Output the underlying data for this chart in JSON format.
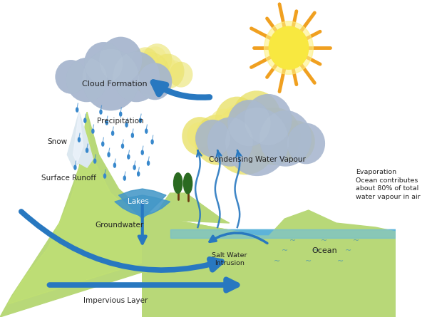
{
  "bg_color": "#ffffff",
  "mountain_color_top": "#b8d878",
  "mountain_color_bottom": "#90c840",
  "snow_color": "#dce8f0",
  "ocean_color": "#4aa8d0",
  "ocean_top": "#6abce0",
  "cloud_gray": "#9aaac8",
  "cloud_gray2": "#b8c8d8",
  "cloud_yellow": "#e8e060",
  "cloud_yellow2": "#f0e878",
  "arrow_color": "#2878c0",
  "rain_color": "#3888cc",
  "sun_yellow": "#f8e840",
  "sun_orange": "#f0a020",
  "lake_color": "#4498c8",
  "tree_green": "#2a6a20",
  "tree_trunk": "#6a3a10",
  "text_color": "#222222",
  "labels": {
    "cloud_formation": "Cloud Formation",
    "precipitation": "Precipitation",
    "snow": "Snow",
    "surface_runoff": "Surface Runoff",
    "lakes": "Lakes",
    "groundwater": "Groundwater",
    "impervious_layer": "Impervious Layer",
    "salt_water": "Salt Water\nIntrusion",
    "ocean": "Ocean",
    "condensing": "Condensing Water Vapour",
    "evaporation": "Evaporation\nOcean contributes\nabout 80% of total\nwater vapour in air"
  },
  "fig_width": 5.99,
  "fig_height": 4.45,
  "dpi": 100
}
